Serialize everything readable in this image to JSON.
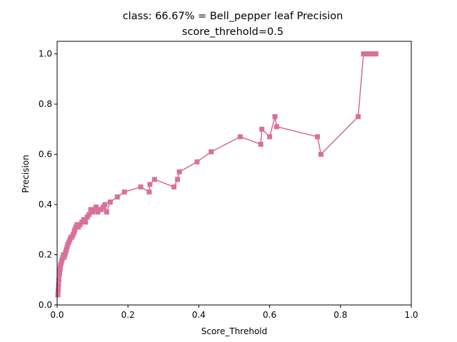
{
  "chart_data": {
    "type": "line",
    "title_line1": "class: 66.67% = Bell_pepper leaf Precision",
    "title_line2": "score_threhold=0.5",
    "xlabel": "Score_Threhold",
    "ylabel": "Precision",
    "xlim": [
      0.0,
      1.0
    ],
    "ylim": [
      0.0,
      1.05
    ],
    "xticks": [
      0.0,
      0.2,
      0.4,
      0.6,
      0.8,
      1.0
    ],
    "yticks": [
      0.0,
      0.2,
      0.4,
      0.6,
      0.8,
      1.0
    ],
    "xtick_labels": [
      "0.0",
      "0.2",
      "0.4",
      "0.6",
      "0.8",
      "1.0"
    ],
    "ytick_labels": [
      "0.0",
      "0.2",
      "0.4",
      "0.6",
      "0.8",
      "1.0"
    ],
    "grid": false,
    "color": "#d9709a",
    "marker": "square",
    "series": [
      {
        "x": [
          0.002,
          0.003,
          0.004,
          0.005,
          0.006,
          0.007,
          0.008,
          0.009,
          0.01,
          0.012,
          0.014,
          0.016,
          0.018,
          0.02,
          0.022,
          0.024,
          0.026,
          0.028,
          0.03,
          0.033,
          0.036,
          0.039,
          0.042,
          0.045,
          0.048,
          0.05,
          0.053,
          0.056,
          0.06,
          0.065,
          0.07,
          0.075,
          0.08,
          0.085,
          0.09,
          0.095,
          0.1,
          0.105,
          0.11,
          0.115,
          0.12,
          0.125,
          0.13,
          0.135,
          0.14,
          0.15,
          0.17,
          0.19,
          0.236,
          0.26,
          0.262,
          0.275,
          0.33,
          0.34,
          0.345,
          0.395,
          0.435,
          0.517,
          0.575,
          0.578,
          0.6,
          0.615,
          0.62,
          0.735,
          0.745,
          0.85,
          0.865,
          0.87,
          0.875,
          0.88,
          0.885,
          0.89,
          0.895,
          0.9
        ],
        "y": [
          0.04,
          0.06,
          0.08,
          0.1,
          0.12,
          0.13,
          0.14,
          0.15,
          0.16,
          0.17,
          0.18,
          0.19,
          0.2,
          0.19,
          0.2,
          0.21,
          0.22,
          0.23,
          0.24,
          0.25,
          0.26,
          0.27,
          0.27,
          0.28,
          0.29,
          0.3,
          0.31,
          0.32,
          0.31,
          0.32,
          0.33,
          0.34,
          0.33,
          0.35,
          0.36,
          0.38,
          0.37,
          0.38,
          0.39,
          0.37,
          0.38,
          0.38,
          0.39,
          0.4,
          0.37,
          0.41,
          0.43,
          0.45,
          0.47,
          0.45,
          0.48,
          0.5,
          0.47,
          0.5,
          0.53,
          0.57,
          0.61,
          0.67,
          0.64,
          0.7,
          0.67,
          0.75,
          0.71,
          0.67,
          0.6,
          0.75,
          1.0,
          1.0,
          1.0,
          1.0,
          1.0,
          1.0,
          1.0,
          1.0
        ]
      }
    ]
  }
}
